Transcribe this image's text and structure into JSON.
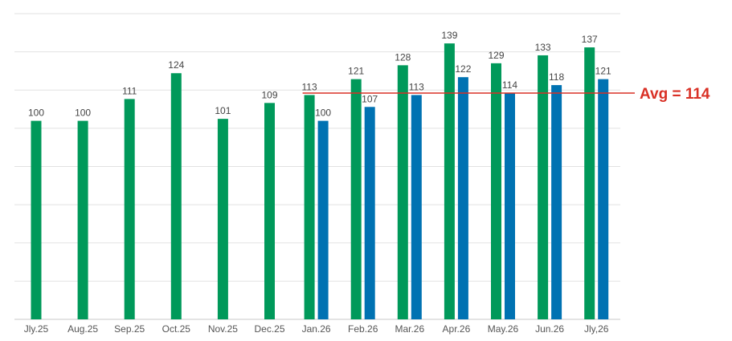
{
  "chart_data": {
    "type": "bar",
    "categories": [
      "Jly.25",
      "Aug.25",
      "Sep.25",
      "Oct.25",
      "Nov.25",
      "Dec.25",
      "Jan.26",
      "Feb.26",
      "Mar.26",
      "Apr.26",
      "May.26",
      "Jun.26",
      "Jly,26"
    ],
    "series": [
      {
        "color": "#00995a",
        "values": [
          100,
          100,
          111,
          124,
          101,
          109,
          113,
          121,
          128,
          139,
          129,
          133,
          137
        ]
      },
      {
        "color": "#0072b2",
        "values": [
          null,
          null,
          null,
          null,
          null,
          null,
          100,
          107,
          113,
          122,
          114,
          118,
          121
        ]
      }
    ],
    "ylim": [
      0,
      154
    ],
    "grid": true,
    "reference_line": {
      "value": 114,
      "label": "Avg = 114",
      "color": "#d93025",
      "start_category": "Jan.26"
    }
  }
}
